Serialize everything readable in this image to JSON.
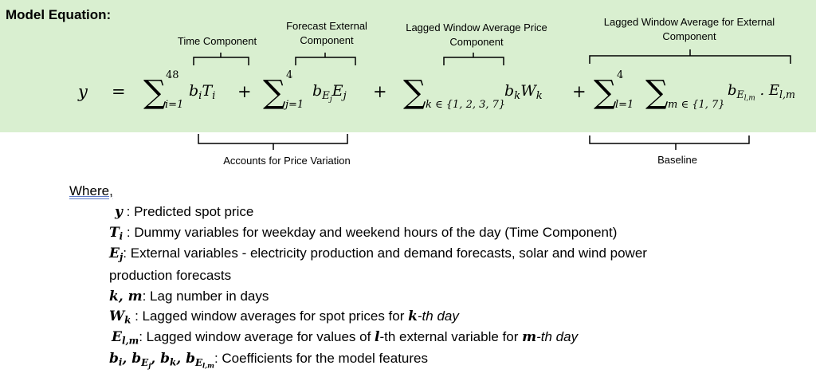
{
  "heading": "Model Equation:",
  "captions": {
    "time": "Time Component",
    "forecast_line1": "Forecast External",
    "forecast_line2": "Component",
    "lagged_price_line1": "Lagged Window Average Price",
    "lagged_price_line2": "Component",
    "lagged_ext_line1": "Lagged Window Average for External",
    "lagged_ext_line2": "Component",
    "price_variation": "Accounts for Price Variation",
    "baseline": "Baseline"
  },
  "equation": {
    "lhs": "y",
    "equals": "=",
    "sum1_upper": "48",
    "sum1_lower": "i=1",
    "sum2_upper": "4",
    "sum2_lower": "j=1",
    "sum3_lower": "k ∈ {1, 2, 3, 7}",
    "sum4_upper": "4",
    "sum4_lower": "l=1",
    "sum5_lower": "m ∈ {1, 7}",
    "plus": "+"
  },
  "where": "Where,",
  "definitions": {
    "y": ": Predicted spot price",
    "t": ": Dummy variables for weekday and weekend hours of the day (Time Component)",
    "e_line1": ": External variables - electricity production and demand forecasts, solar and wind power",
    "e_line2": "production forecasts",
    "km": ": Lag number in days",
    "w_text": ": Lagged window averages for spot prices for ",
    "w_bold": "k",
    "w_tail": "-th day",
    "el_text": ": Lagged window average for values of ",
    "el_bold_l": "l",
    "el_mid": "-th external variable for ",
    "el_bold_m": "m",
    "el_tail": "-th day",
    "coef": ": Coefficients for the model features"
  }
}
